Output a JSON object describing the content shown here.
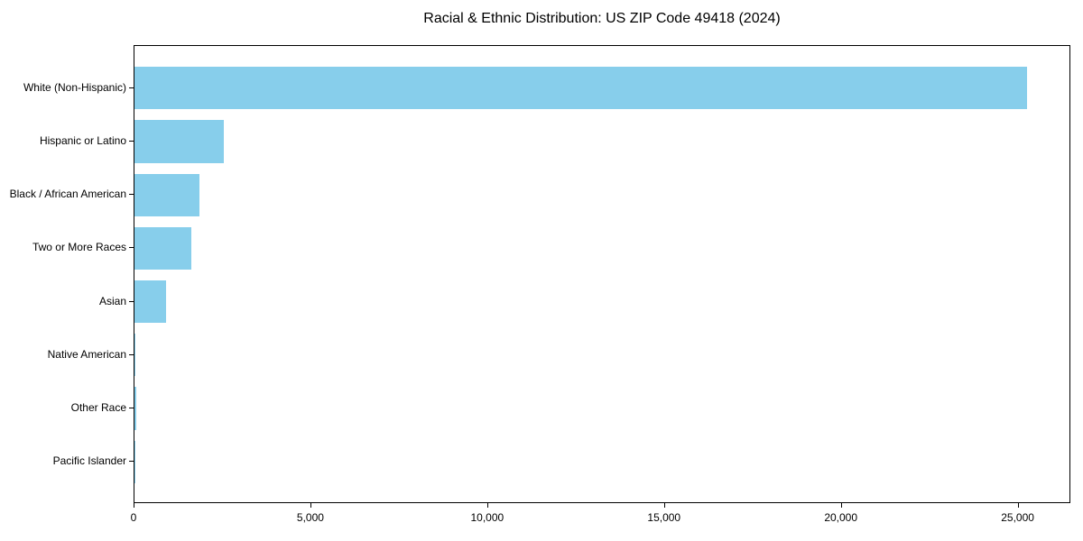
{
  "chart_data": {
    "type": "bar",
    "orientation": "horizontal",
    "title": "Racial & Ethnic Distribution: US ZIP Code 49418 (2024)",
    "xlabel": "",
    "ylabel": "",
    "categories": [
      "White (Non-Hispanic)",
      "Hispanic or Latino",
      "Black / African American",
      "Two or More Races",
      "Asian",
      "Native American",
      "Other Race",
      "Pacific Islander"
    ],
    "values": [
      25230,
      2530,
      1840,
      1610,
      895,
      20,
      45,
      10
    ],
    "xlim": [
      0,
      26490
    ],
    "x_ticks": [
      {
        "value": 0,
        "label": "0"
      },
      {
        "value": 5000,
        "label": "5,000"
      },
      {
        "value": 10000,
        "label": "10,000"
      },
      {
        "value": 15000,
        "label": "15,000"
      },
      {
        "value": 20000,
        "label": "20,000"
      },
      {
        "value": 25000,
        "label": "25,000"
      }
    ],
    "grid": false,
    "legend": null,
    "bar_color": "#87CEEB",
    "axis_color": "#000000",
    "text_color": "#000000",
    "background_color": "#FFFFFF"
  }
}
